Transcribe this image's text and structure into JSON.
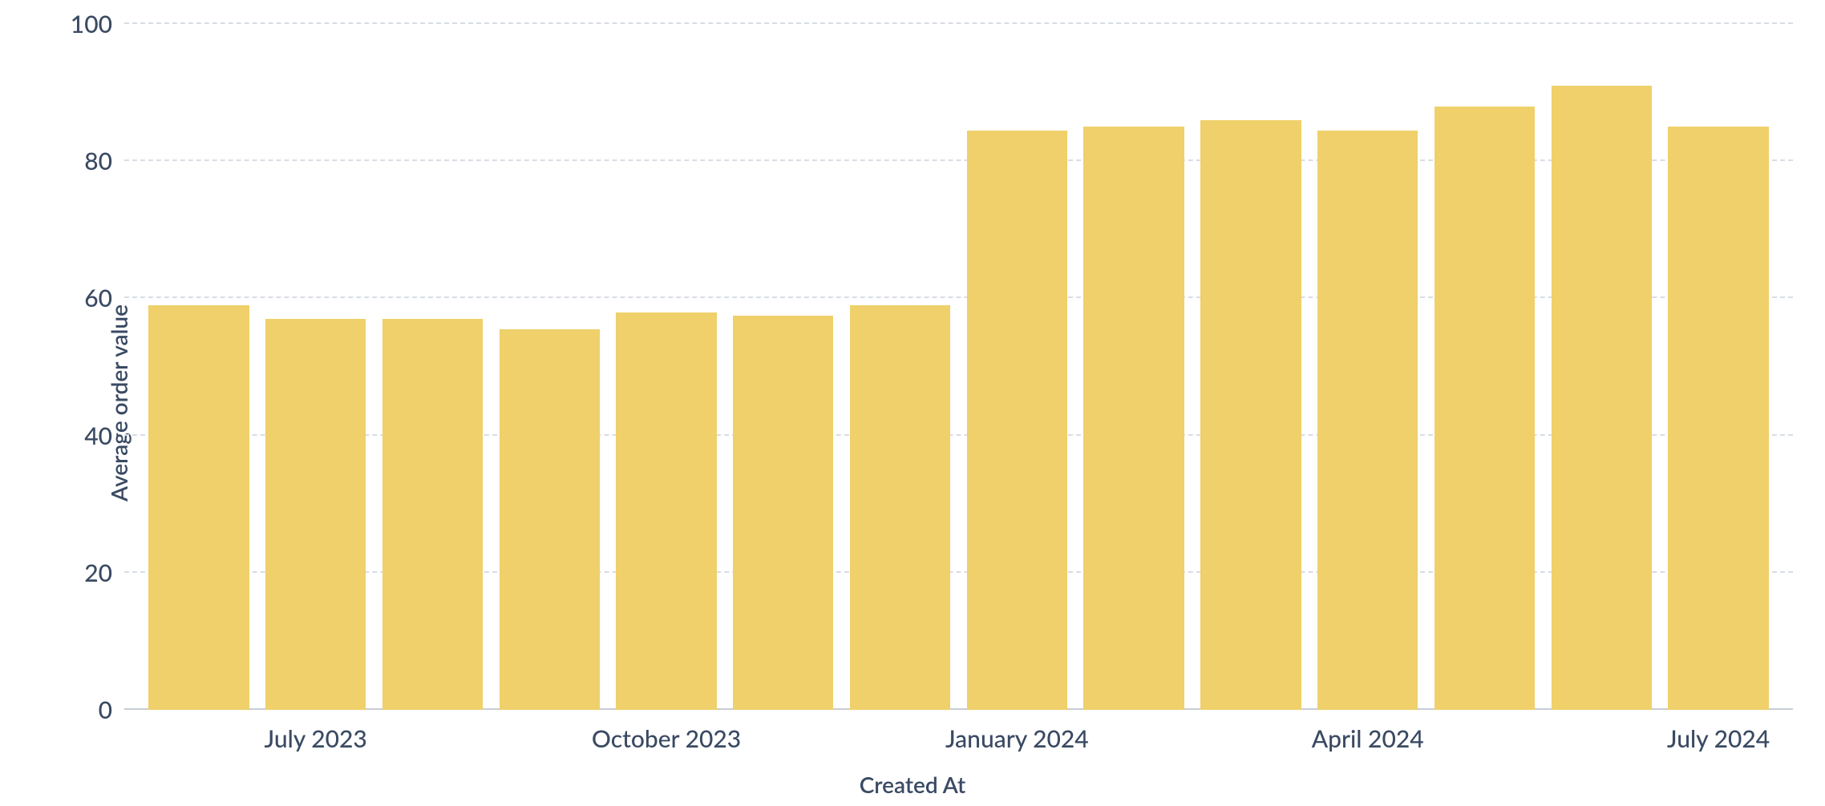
{
  "chart": {
    "type": "bar",
    "y_label": "Average order value",
    "x_label": "Created At",
    "background_color": "#ffffff",
    "grid_color": "#d8dde4",
    "baseline_color": "#c8cdd6",
    "bar_color": "#efd06a",
    "text_color": "#3a4a63",
    "axis_label_fontsize": 28,
    "tick_label_fontsize": 30,
    "ylim": [
      0,
      100
    ],
    "ytick_step": 20,
    "yticks": [
      0,
      20,
      40,
      60,
      80,
      100
    ],
    "bar_width": 0.86,
    "months": [
      "June 2023",
      "July 2023",
      "August 2023",
      "September 2023",
      "October 2023",
      "November 2023",
      "December 2023",
      "January 2024",
      "February 2024",
      "March 2024",
      "April 2024",
      "May 2024",
      "June 2024",
      "July 2024"
    ],
    "values": [
      59,
      57,
      57,
      55.5,
      58,
      57.5,
      59,
      84.5,
      85,
      86,
      84.5,
      88,
      91,
      85
    ],
    "x_tick_labels": {
      "1": "July 2023",
      "4": "October 2023",
      "7": "January 2024",
      "10": "April 2024",
      "13": "July 2024"
    }
  }
}
